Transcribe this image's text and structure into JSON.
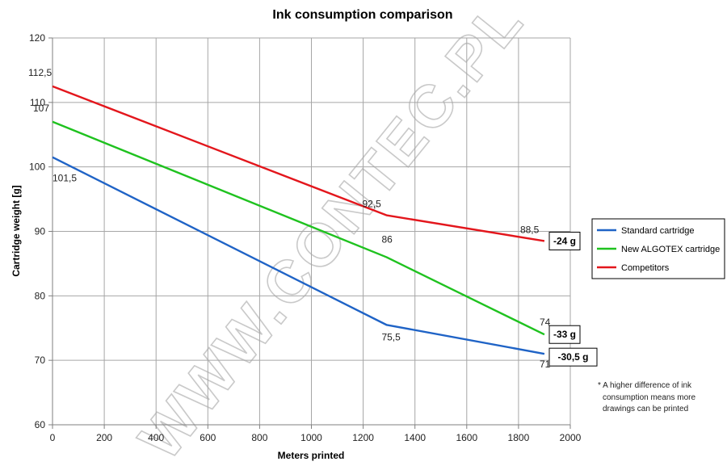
{
  "chart_data": {
    "type": "line",
    "title": "Ink consumption comparison",
    "xlabel": "Meters printed",
    "ylabel": "Cartridge weight [g]",
    "xlim": [
      0,
      2000
    ],
    "ylim": [
      60,
      120
    ],
    "x_ticks": [
      "0",
      "200",
      "400",
      "600",
      "800",
      "1000",
      "1200",
      "1400",
      "1600",
      "1800",
      "2000"
    ],
    "y_ticks": [
      "60",
      "70",
      "80",
      "90",
      "100",
      "110",
      "120"
    ],
    "grid": true,
    "legend_position": "right",
    "series": [
      {
        "name": "Standard cartridge",
        "color": "#1f63c6",
        "points": [
          [
            0,
            101.5
          ],
          [
            1290,
            75.5
          ],
          [
            1900,
            71
          ]
        ],
        "labels": [
          "101,5",
          "75,5",
          "71"
        ]
      },
      {
        "name": "New ALGOTEX cartridge",
        "color": "#1fc21f",
        "points": [
          [
            0,
            107
          ],
          [
            1290,
            86
          ],
          [
            1900,
            74
          ]
        ],
        "labels": [
          "107",
          "86",
          "74"
        ]
      },
      {
        "name": "Competitors",
        "color": "#e3161c",
        "points": [
          [
            0,
            112.5
          ],
          [
            1290,
            92.5
          ],
          [
            1900,
            88.5
          ]
        ],
        "labels": [
          "112,5",
          "92,5",
          "88,5"
        ]
      }
    ],
    "differences": [
      {
        "label": "-24 g",
        "y": 88.5
      },
      {
        "label": "-33 g",
        "y": 74
      },
      {
        "label": "-30,5 g",
        "y": 70.5
      }
    ],
    "note": [
      "* A higher difference  of ink",
      "consumption means more",
      "drawings can be printed"
    ],
    "watermark": "WWW.CONTEC.PL"
  }
}
